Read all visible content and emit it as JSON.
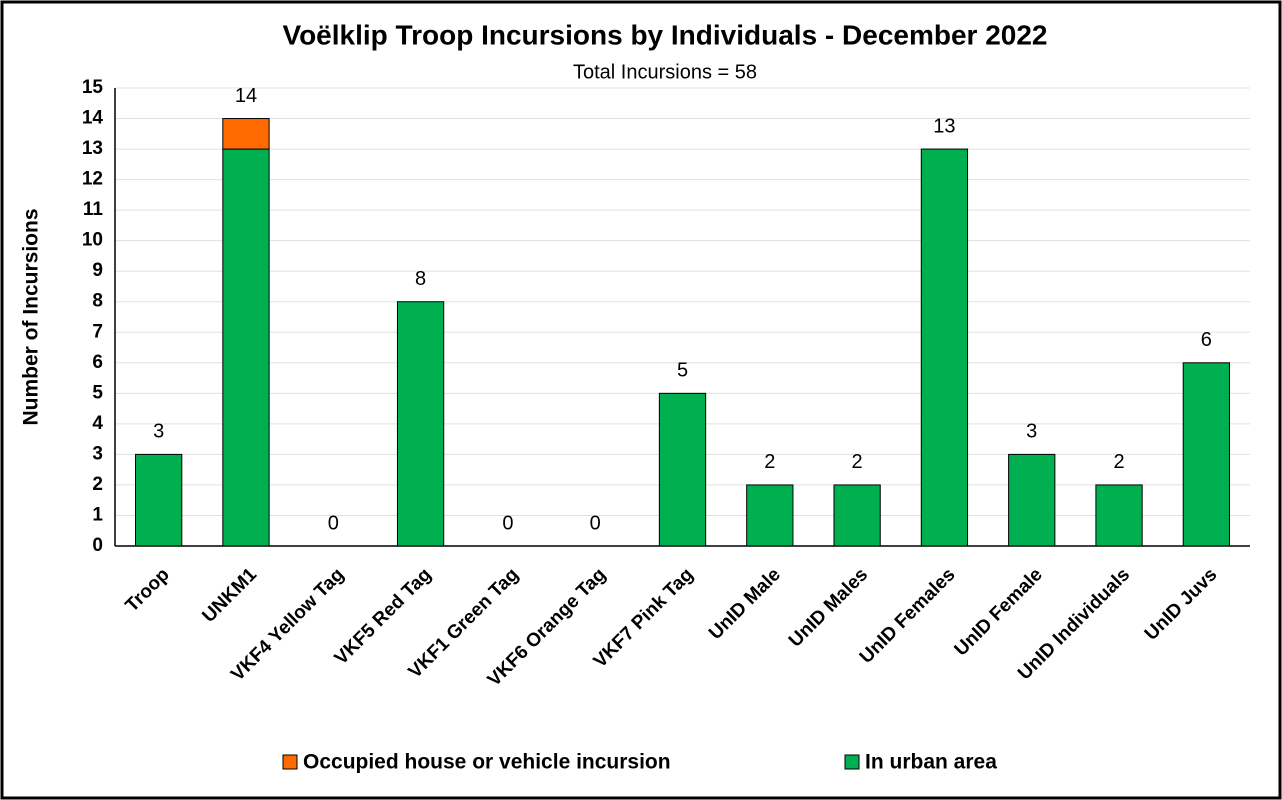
{
  "chart_data": {
    "type": "bar",
    "stacked": true,
    "title": "Voëlklip Troop Incursions by Individuals - December 2022",
    "subtitle": "Total Incursions = 58",
    "y_label": "Number of Incursions",
    "categories": [
      "Troop",
      "UNKM1",
      "VKF4 Yellow Tag",
      "VKF5 Red Tag",
      "VKF1 Green Tag",
      "VKF6 Orange Tag",
      "VKF7 Pink Tag",
      "UnID Male",
      "UnID Males",
      "UnID Females",
      "UnID Female",
      "UnID Individuals",
      "UnID Juvs"
    ],
    "series": [
      {
        "name": "In urban area",
        "color": "#00b050",
        "values": [
          3,
          13,
          0,
          8,
          0,
          0,
          5,
          2,
          2,
          13,
          3,
          2,
          6
        ]
      },
      {
        "name": "Occupied house or vehicle incursion",
        "color": "#ff6a00",
        "values": [
          0,
          1,
          0,
          0,
          0,
          0,
          0,
          0,
          0,
          0,
          0,
          0,
          0
        ]
      }
    ],
    "totals": [
      3,
      14,
      0,
      8,
      0,
      0,
      5,
      2,
      2,
      13,
      3,
      2,
      6
    ],
    "ylim": [
      0,
      15
    ],
    "yticks": [
      0,
      1,
      2,
      3,
      4,
      5,
      6,
      7,
      8,
      9,
      10,
      11,
      12,
      13,
      14,
      15
    ],
    "grid": true,
    "legend": "bottom"
  }
}
